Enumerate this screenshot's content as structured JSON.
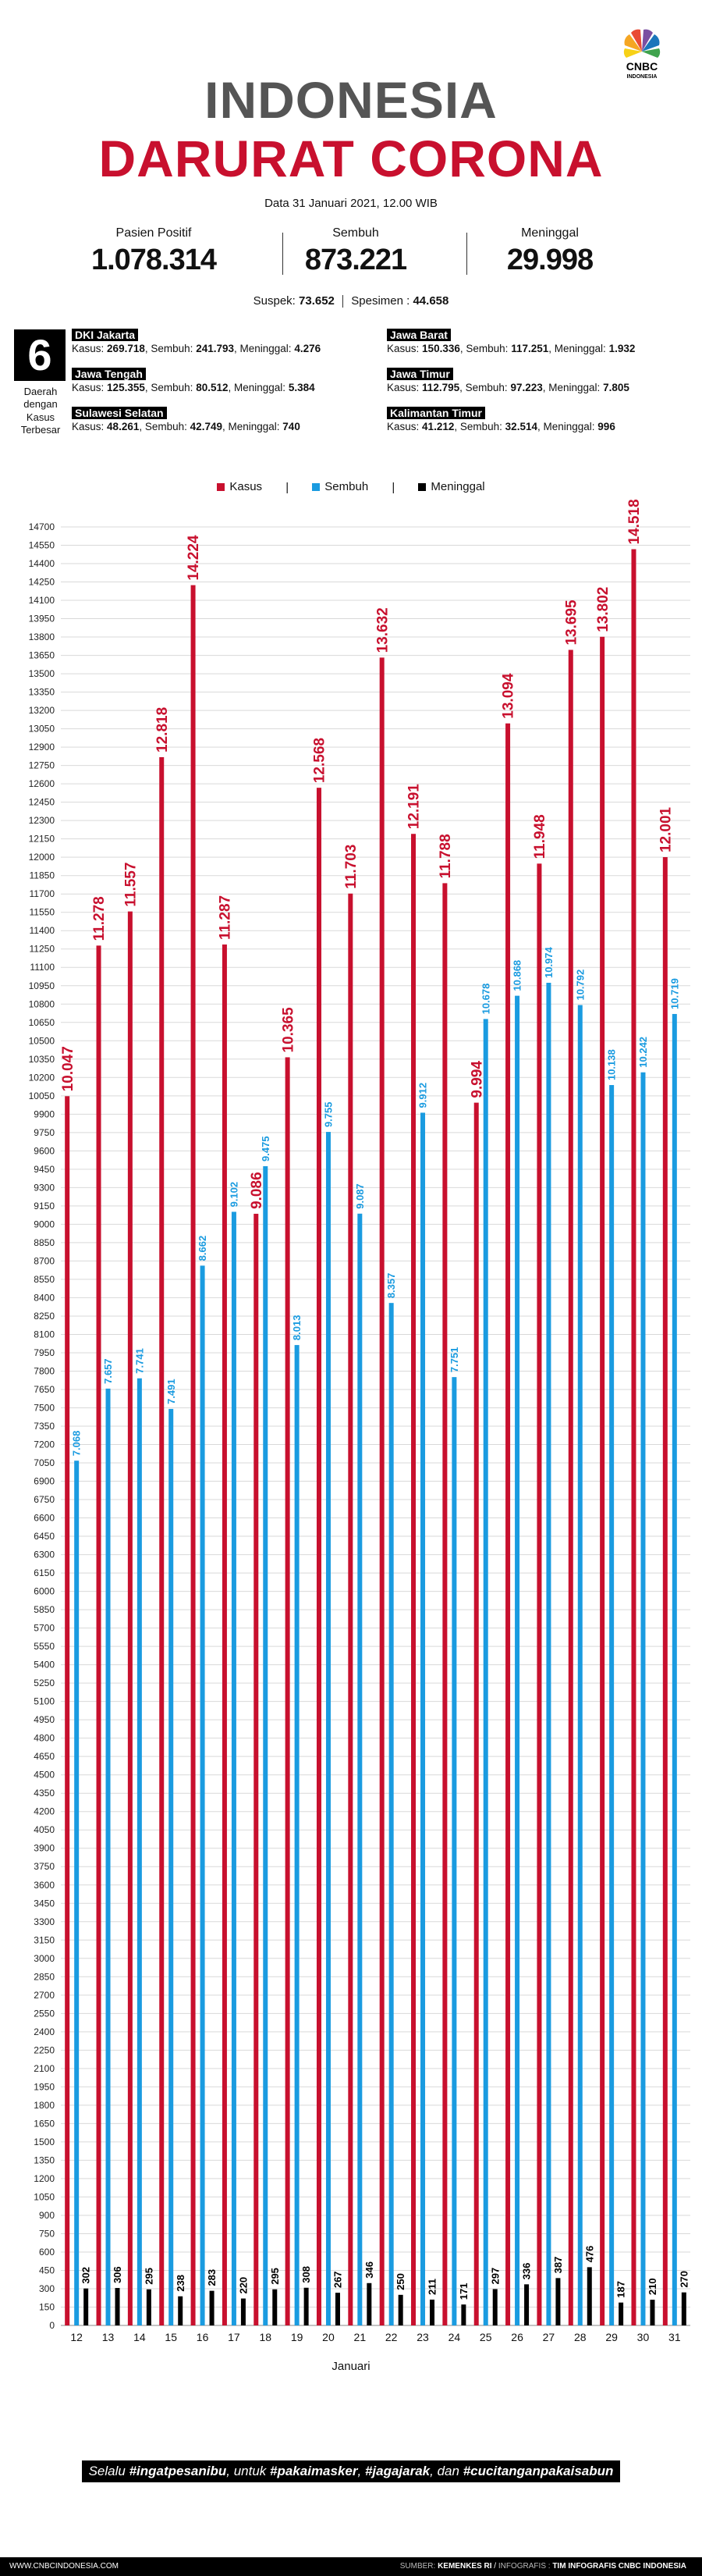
{
  "header": {
    "brand": "CNBC INDONESIA",
    "title_line1": "INDONESIA",
    "title_line2": "DARURAT CORONA",
    "date": "Data 31 Januari 2021, 12.00 WIB"
  },
  "stats": [
    {
      "label": "Pasien Positif",
      "value": "1.078.314"
    },
    {
      "label": "Sembuh",
      "value": "873.221"
    },
    {
      "label": "Meninggal",
      "value": "29.998"
    }
  ],
  "sub": {
    "suspek_label": "Suspek:",
    "suspek_value": "73.652",
    "spesimen_label": "Spesimen :",
    "spesimen_value": "44.658"
  },
  "regions_header": {
    "count": "6",
    "note": "Daerah dengan Kasus Terbesar"
  },
  "regions": [
    {
      "name": "DKI Jakarta",
      "kasus": "269.718",
      "sembuh": "241.793",
      "meninggal": "4.276"
    },
    {
      "name": "Jawa Barat",
      "kasus": "150.336",
      "sembuh": "117.251",
      "meninggal": "1.932"
    },
    {
      "name": "Jawa Tengah",
      "kasus": "125.355",
      "sembuh": "80.512",
      "meninggal": "5.384"
    },
    {
      "name": "Jawa Timur",
      "kasus": "112.795",
      "sembuh": "97.223",
      "meninggal": "7.805"
    },
    {
      "name": "Sulawesi Selatan",
      "kasus": "48.261",
      "sembuh": "42.749",
      "meninggal": "740"
    },
    {
      "name": "Kalimantan Timur",
      "kasus": "41.212",
      "sembuh": "32.514",
      "meninggal": "996"
    }
  ],
  "region_labels": {
    "kasus": "Kasus:",
    "sembuh": "Sembuh:",
    "meninggal": "Meninggal:"
  },
  "legend": [
    {
      "label": "Kasus",
      "color": "#c8102e"
    },
    {
      "label": "Sembuh",
      "color": "#1a9be0"
    },
    {
      "label": "Meninggal",
      "color": "#000000"
    }
  ],
  "chart_data": {
    "type": "bar",
    "xlabel": "Januari",
    "ylabel": "",
    "ylim": [
      0,
      14700
    ],
    "ytick_step": 150,
    "categories": [
      "12",
      "13",
      "14",
      "15",
      "16",
      "17",
      "18",
      "19",
      "20",
      "21",
      "22",
      "23",
      "24",
      "25",
      "26",
      "27",
      "28",
      "29",
      "30",
      "31"
    ],
    "series": [
      {
        "name": "Kasus",
        "color": "#c8102e",
        "values": [
          10047,
          11278,
          11557,
          12818,
          14224,
          11287,
          9086,
          10365,
          12568,
          11703,
          13632,
          12191,
          11788,
          9994,
          13094,
          11948,
          13695,
          13802,
          14518,
          12001
        ],
        "labels": [
          "10.047",
          "11.278",
          "11.557",
          "12.818",
          "14.224",
          "11.287",
          "9.086",
          "10.365",
          "12.568",
          "11.703",
          "13.632",
          "12.191",
          "11.788",
          "9.994",
          "13.094",
          "11.948",
          "13.695",
          "13.802",
          "14.518",
          "12.001"
        ]
      },
      {
        "name": "Sembuh",
        "color": "#1a9be0",
        "values": [
          7068,
          7657,
          7741,
          7491,
          8662,
          9102,
          9475,
          8013,
          9755,
          9087,
          8357,
          9912,
          7751,
          10678,
          10868,
          10974,
          10792,
          10138,
          10242,
          10719
        ],
        "labels": [
          "7.068",
          "7.657",
          "7.741",
          "7.491",
          "8.662",
          "9.102",
          "9.475",
          "8.013",
          "9.755",
          "9.087",
          "8.357",
          "9.912",
          "7.751",
          "10.678",
          "10.868",
          "10.974",
          "10.792",
          "10.138",
          "10.242",
          "10.719"
        ]
      },
      {
        "name": "Meninggal",
        "color": "#000000",
        "values": [
          302,
          306,
          295,
          238,
          283,
          220,
          295,
          308,
          267,
          346,
          250,
          211,
          171,
          297,
          336,
          387,
          476,
          187,
          210,
          270
        ],
        "labels": [
          "302",
          "306",
          "295",
          "238",
          "283",
          "220",
          "295",
          "308",
          "267",
          "346",
          "250",
          "211",
          "171",
          "297",
          "336",
          "387",
          "476",
          "187",
          "210",
          "270"
        ]
      }
    ]
  },
  "tagline": {
    "pre": "Selalu ",
    "t1": "#ingatpesanibu",
    "mid1": ", untuk ",
    "t2": "#pakaimasker",
    "mid2": ", ",
    "t3": "#jagajarak",
    "mid3": ", dan ",
    "t4": "#cucitanganpakaisabun"
  },
  "footer": {
    "left": "WWW.CNBCINDONESIA.COM",
    "source_label": "SUMBER:",
    "source": "KEMENKES RI",
    "credit_label": "INFOGRAFIS :",
    "credit": "TIM INFOGRAFIS CNBC INDONESIA"
  }
}
